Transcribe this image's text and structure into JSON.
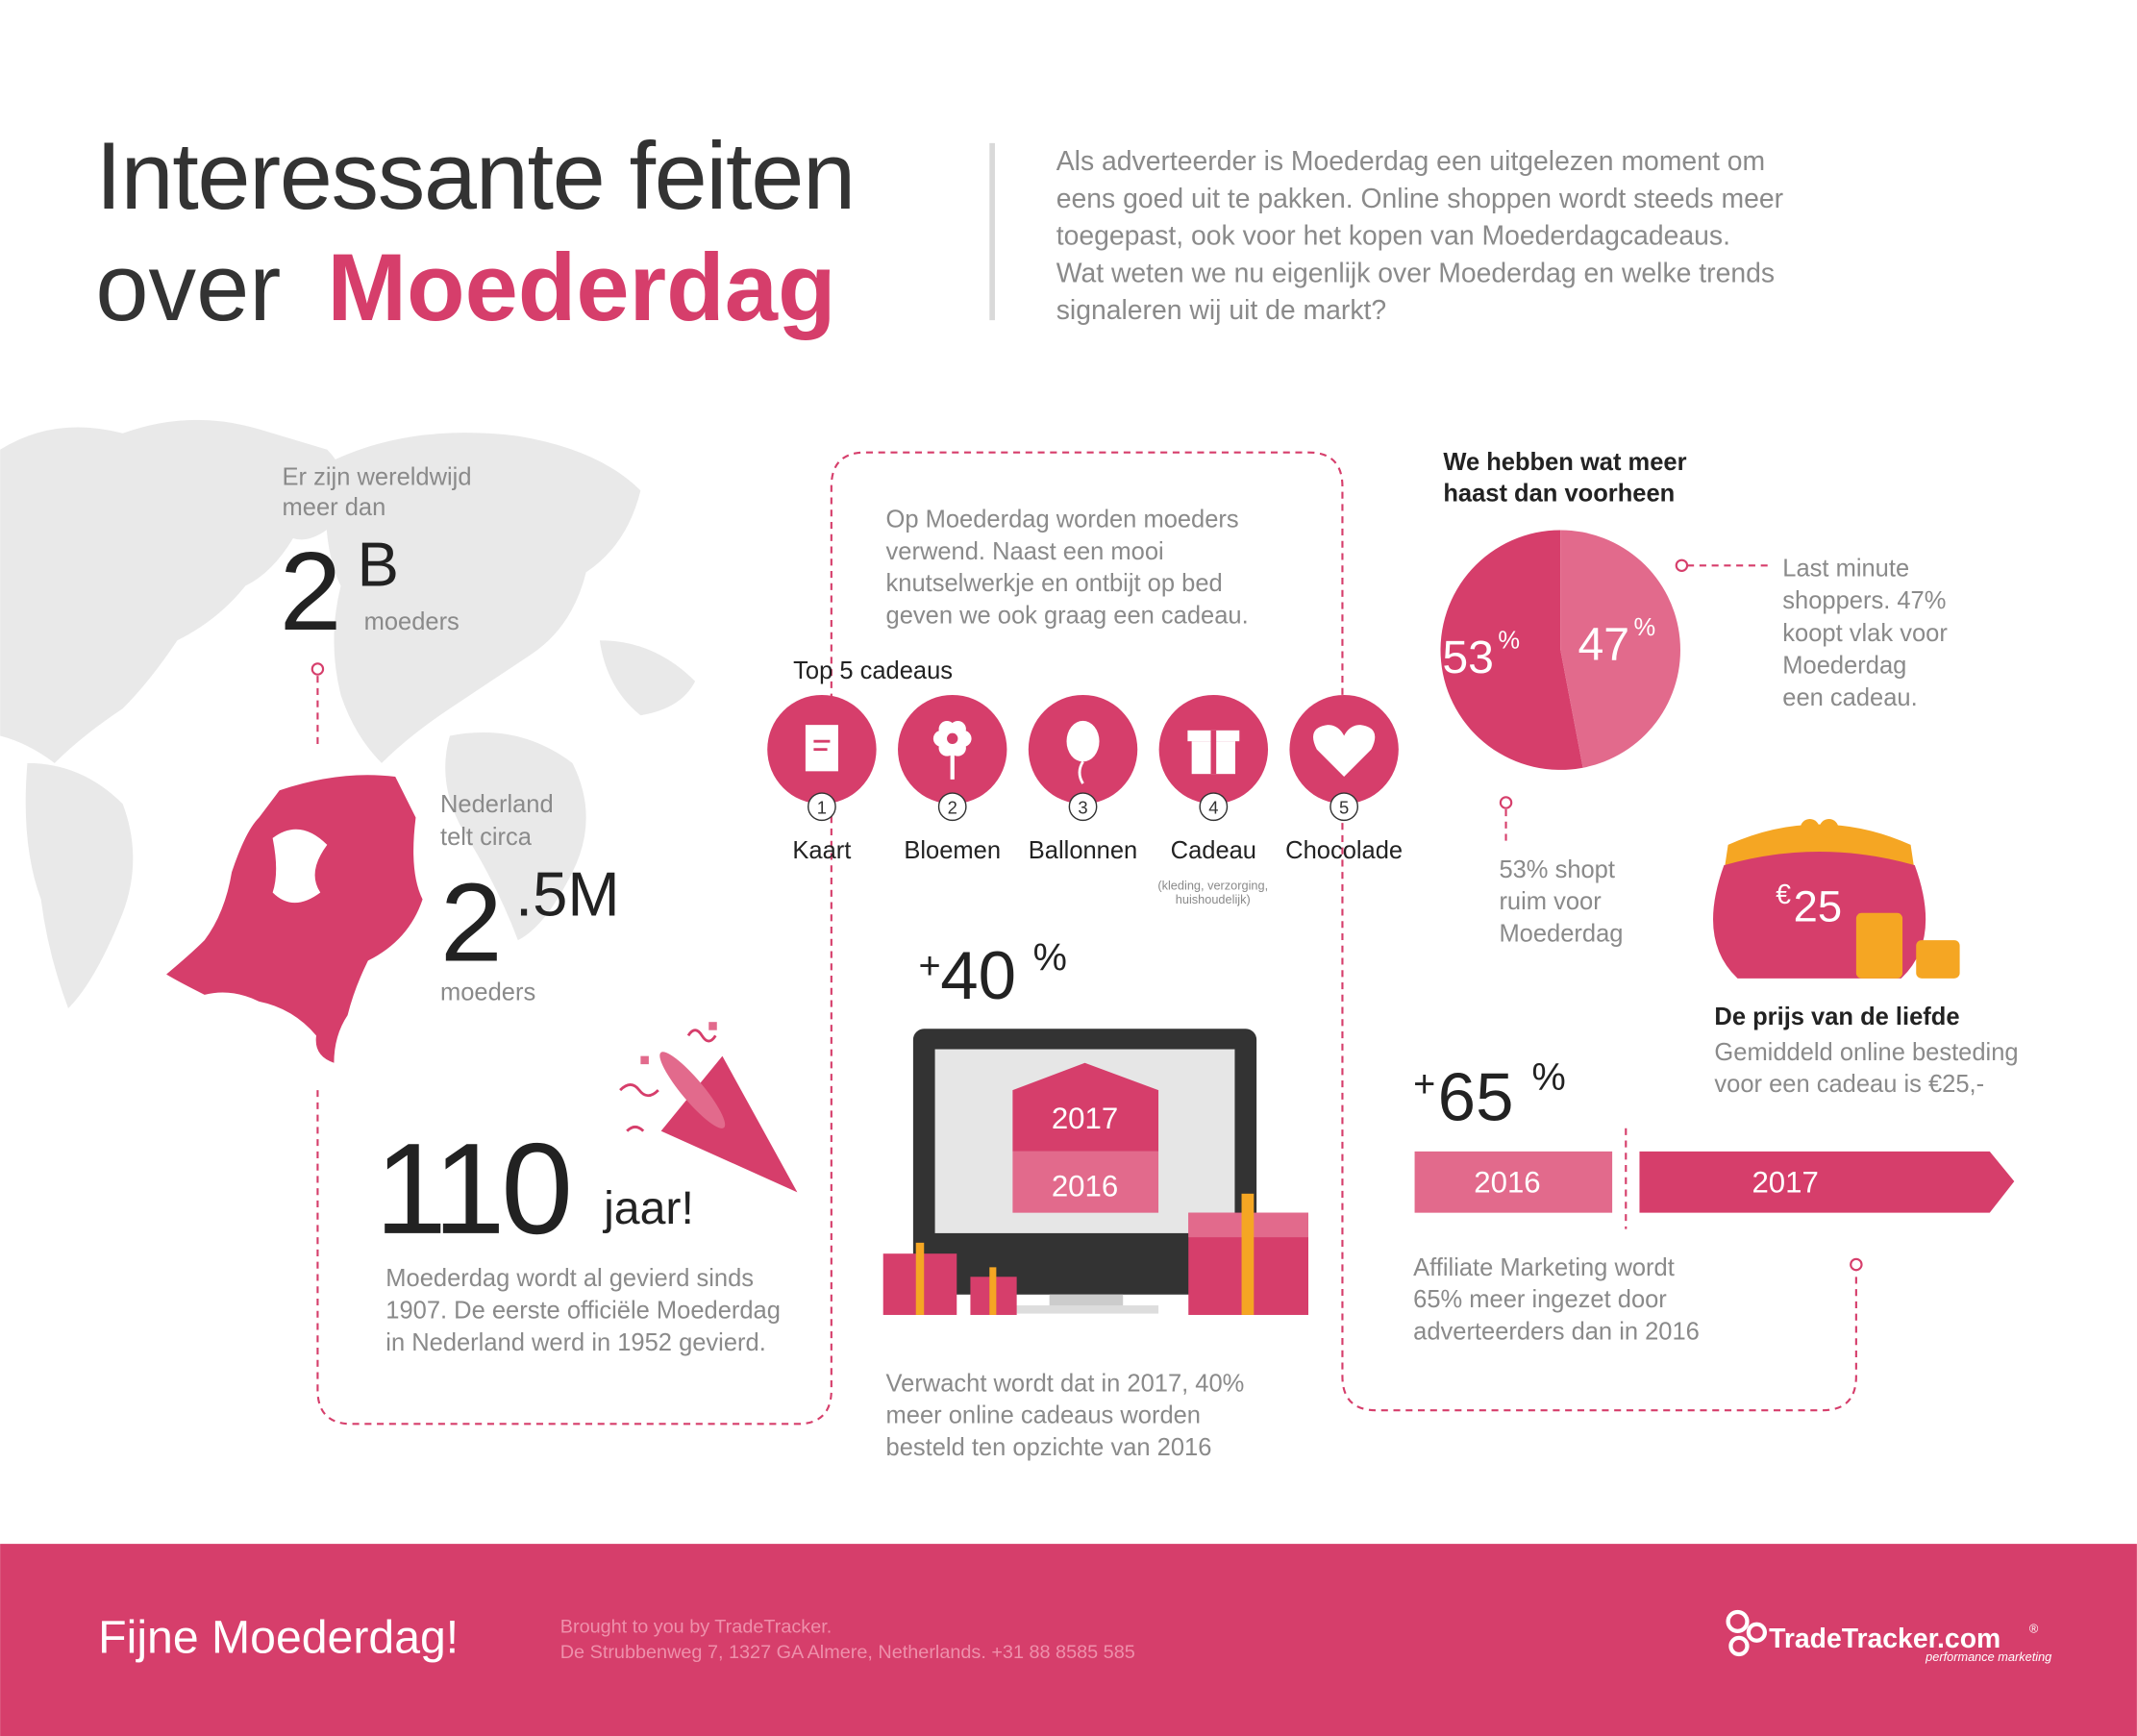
{
  "header": {
    "title_line1": "Interessante feiten",
    "title_line2_prefix": "over",
    "title_line2_highlight": "Moederdag",
    "intro": [
      "Als adverteerder is Moederdag een uitgelezen moment om",
      "eens goed uit te pakken. Online shoppen wordt steeds meer",
      "toegepast, ook voor het kopen van Moederdagcadeaus.",
      "Wat weten we nu eigenlijk over Moederdag en welke trends",
      "signaleren wij uit de markt?"
    ]
  },
  "world": {
    "intro": [
      "Er zijn wereldwijd",
      "meer dan"
    ],
    "number": "2",
    "suffix": "B",
    "unit": "moeders"
  },
  "netherlands": {
    "intro": [
      "Nederland",
      "telt circa"
    ],
    "number": "2",
    "suffix": ".5M",
    "unit": "moeders"
  },
  "anniversary": {
    "number": "110",
    "unit": "jaar!",
    "text": [
      "Moederdag wordt al gevierd sinds",
      "1907. De eerste officiële Moederdag",
      "in Nederland werd in 1952 gevierd."
    ]
  },
  "gifts": {
    "intro": [
      "Op Moederdag worden moeders",
      "verwend. Naast een mooi",
      "knutselwerkje en ontbijt op bed",
      "geven we ook graag een cadeau."
    ],
    "title": "Top 5 cadeaus",
    "items": [
      {
        "rank": "1",
        "label": "Kaart"
      },
      {
        "rank": "2",
        "label": "Bloemen"
      },
      {
        "rank": "3",
        "label": "Ballonnen"
      },
      {
        "rank": "4",
        "label": "Cadeau"
      },
      {
        "rank": "5",
        "label": "Chocolade"
      }
    ],
    "note": [
      "(kleding, verzorging,",
      "huishoudelijk)"
    ]
  },
  "growth": {
    "prefix": "+",
    "number": "40",
    "unit": "%",
    "years": [
      "2017",
      "2016"
    ],
    "text": [
      "Verwacht wordt dat in 2017, 40%",
      "meer online cadeaus worden",
      "besteld ten opzichte van 2016"
    ]
  },
  "haste": {
    "title": [
      "We hebben wat meer",
      "haast dan voorheen"
    ],
    "pie": {
      "slices": [
        {
          "value": 53,
          "unit": "%",
          "color": "#d63e6b"
        },
        {
          "value": 47,
          "unit": "%",
          "color": "#e26a8c"
        }
      ]
    },
    "last_minute": [
      "Last minute",
      "shoppers. 47%",
      "koopt vlak voor",
      "Moederdag",
      "een cadeau."
    ],
    "early": [
      "53% shopt",
      "ruim voor",
      "Moederdag"
    ]
  },
  "price": {
    "symbol": "€",
    "amount": "25",
    "title": "De prijs van de liefde",
    "text": [
      "Gemiddeld online besteding",
      "voor een cadeau is €25,-"
    ]
  },
  "affiliate": {
    "prefix": "+",
    "number": "65",
    "unit": "%",
    "bars": [
      "2016",
      "2017"
    ],
    "text": [
      "Affiliate Marketing wordt",
      "65% meer ingezet door",
      "adverteerders dan in 2016"
    ]
  },
  "footer": {
    "greeting": "Fijne Moederdag!",
    "credits": [
      "Brought to you by TradeTracker.",
      "De Strubbenweg 7, 1327 GA Almere, Netherlands. +31 88 8585 585"
    ],
    "logo": "TradeTracker.com",
    "logo_mark": "®",
    "tagline": "performance marketing"
  }
}
